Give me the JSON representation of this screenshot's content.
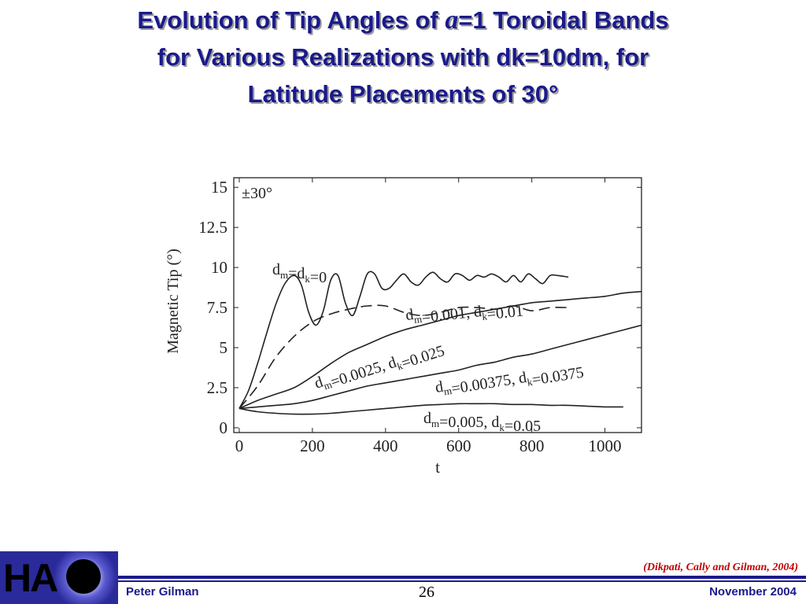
{
  "slide": {
    "title_part1": "Evolution of Tip Angles of ",
    "title_alpha": "a",
    "title_part2": "=1 Toroidal Bands",
    "title_line2": "for Various Realizations with dk=10dm, for",
    "title_line3": "Latitude Placements of 30°",
    "title_color": "#1a1a8c"
  },
  "footer": {
    "logo_text": "HA",
    "citation": "(Dikpati, Cally and Gilman, 2004)",
    "author": "Peter Gilman",
    "page_number": "26",
    "date": "November 2004",
    "accent_color": "#1a1a8c",
    "citation_color": "#c00000"
  },
  "chart_data": {
    "type": "line",
    "xlabel": "t",
    "ylabel": "Magnetic Tip (°)",
    "corner_label": "±30°",
    "xlim": [
      -15,
      1100
    ],
    "ylim": [
      -0.3,
      15.6
    ],
    "x_ticks": [
      0,
      200,
      400,
      600,
      800,
      1000
    ],
    "y_ticks": [
      0,
      2.5,
      5,
      7.5,
      10,
      12.5,
      15
    ],
    "y_tick_labels": [
      "0",
      "2.5",
      "5",
      "7.5",
      "10",
      "12.5",
      "15"
    ],
    "grid": false,
    "series": [
      {
        "name": "dm=dk=0",
        "label_main": "d",
        "label_parts": [
          [
            "d",
            "m"
          ],
          [
            "=d",
            "k"
          ],
          [
            "=0",
            ""
          ]
        ],
        "style": "solid",
        "x": [
          0,
          25,
          50,
          75,
          100,
          125,
          150,
          170,
          190,
          210,
          230,
          250,
          270,
          290,
          310,
          330,
          350,
          370,
          390,
          410,
          430,
          450,
          470,
          490,
          510,
          530,
          550,
          570,
          590,
          610,
          630,
          650,
          670,
          690,
          710,
          730,
          750,
          770,
          790,
          810,
          830,
          850,
          870,
          900
        ],
        "y": [
          1.2,
          2.3,
          4.0,
          5.9,
          7.7,
          9.0,
          9.5,
          8.9,
          7.2,
          6.4,
          7.3,
          9.2,
          9.5,
          7.8,
          7.0,
          8.2,
          9.6,
          9.6,
          8.7,
          8.7,
          9.2,
          9.6,
          9.1,
          8.9,
          9.4,
          9.7,
          9.3,
          9.1,
          9.6,
          9.5,
          9.2,
          9.5,
          9.4,
          9.6,
          9.4,
          9.1,
          9.5,
          9.1,
          9.6,
          9.3,
          9.0,
          9.5,
          9.5,
          9.4
        ]
      },
      {
        "name": "dm=0.001, dk=0.01",
        "label_parts": [
          [
            "d",
            "m"
          ],
          [
            "=0.001, d",
            "k"
          ],
          [
            "=0.01",
            ""
          ]
        ],
        "style": "dashed",
        "x": [
          0,
          50,
          100,
          150,
          200,
          250,
          300,
          350,
          400,
          450,
          500,
          550,
          600,
          650,
          700,
          750,
          800,
          850,
          900
        ],
        "y": [
          1.2,
          2.6,
          4.4,
          5.7,
          6.6,
          7.1,
          7.4,
          7.6,
          7.6,
          7.2,
          7.0,
          7.2,
          7.5,
          7.5,
          7.4,
          7.6,
          7.3,
          7.5,
          7.5
        ]
      },
      {
        "name": "dm=0.0025, dk=0.025",
        "label_parts": [
          [
            "d",
            "m"
          ],
          [
            "=0.0025, d",
            "k"
          ],
          [
            "=0.025",
            ""
          ]
        ],
        "style": "solid",
        "x": [
          0,
          50,
          100,
          150,
          200,
          250,
          300,
          350,
          400,
          450,
          500,
          550,
          600,
          650,
          700,
          750,
          800,
          850,
          900,
          950,
          1000,
          1050,
          1100
        ],
        "y": [
          1.2,
          1.7,
          2.1,
          2.5,
          3.2,
          4.0,
          4.7,
          5.2,
          5.7,
          6.1,
          6.4,
          6.7,
          7.0,
          7.2,
          7.4,
          7.6,
          7.8,
          7.9,
          8.0,
          8.1,
          8.2,
          8.4,
          8.5
        ]
      },
      {
        "name": "dm=0.00375, dk=0.0375",
        "label_parts": [
          [
            "d",
            "m"
          ],
          [
            "=0.00375, d",
            "k"
          ],
          [
            "=0.0375",
            ""
          ]
        ],
        "style": "solid",
        "x": [
          0,
          50,
          100,
          150,
          200,
          250,
          300,
          350,
          400,
          450,
          500,
          550,
          600,
          650,
          700,
          750,
          800,
          850,
          900,
          950,
          1000,
          1050,
          1100
        ],
        "y": [
          1.2,
          1.3,
          1.4,
          1.5,
          1.7,
          2.0,
          2.3,
          2.6,
          2.8,
          3.0,
          3.2,
          3.4,
          3.6,
          3.9,
          4.1,
          4.4,
          4.6,
          4.9,
          5.2,
          5.5,
          5.8,
          6.1,
          6.4
        ]
      },
      {
        "name": "dm=0.005, dk=0.05",
        "label_parts": [
          [
            "d",
            "m"
          ],
          [
            "=0.005, d",
            "k"
          ],
          [
            "=0.05",
            ""
          ]
        ],
        "style": "solid",
        "x": [
          0,
          50,
          100,
          150,
          200,
          250,
          300,
          350,
          400,
          450,
          500,
          550,
          600,
          650,
          700,
          750,
          800,
          850,
          900,
          950,
          1000,
          1050
        ],
        "y": [
          1.2,
          1.0,
          0.9,
          0.85,
          0.85,
          0.9,
          1.0,
          1.1,
          1.2,
          1.3,
          1.4,
          1.45,
          1.5,
          1.5,
          1.5,
          1.45,
          1.45,
          1.4,
          1.4,
          1.35,
          1.3,
          1.3
        ]
      }
    ]
  }
}
